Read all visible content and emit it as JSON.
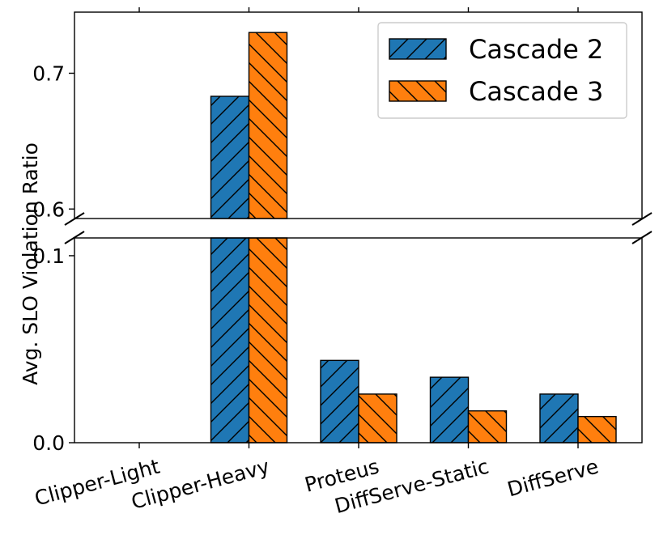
{
  "chart_data": {
    "type": "bar",
    "broken_axis": true,
    "title": "",
    "xlabel": "",
    "ylabel": "Avg. SLO Violation Ratio",
    "categories": [
      "Clipper-Light",
      "Clipper-Heavy",
      "Proteus",
      "DiffServe-Static",
      "DiffServe"
    ],
    "series": [
      {
        "name": "Cascade 2",
        "color": "#1f77b4",
        "hatch": "forward-diagonal",
        "values": [
          0.0,
          0.683,
          0.044,
          0.035,
          0.026
        ]
      },
      {
        "name": "Cascade 3",
        "color": "#ff7f0e",
        "hatch": "back-diagonal",
        "values": [
          0.0,
          0.73,
          0.026,
          0.017,
          0.014
        ]
      }
    ],
    "upper_panel": {
      "ylim": [
        0.593,
        0.745
      ],
      "yticks": [
        0.6,
        0.7
      ],
      "ytick_labels": [
        "0.6",
        "0.7"
      ]
    },
    "lower_panel": {
      "ylim": [
        0.0,
        0.1095
      ],
      "yticks": [
        0.0,
        0.1
      ],
      "ytick_labels": [
        "0.0",
        "0.1"
      ]
    },
    "legend": {
      "position": "top-right",
      "entries": [
        "Cascade 2",
        "Cascade 3"
      ]
    },
    "grid": false
  }
}
